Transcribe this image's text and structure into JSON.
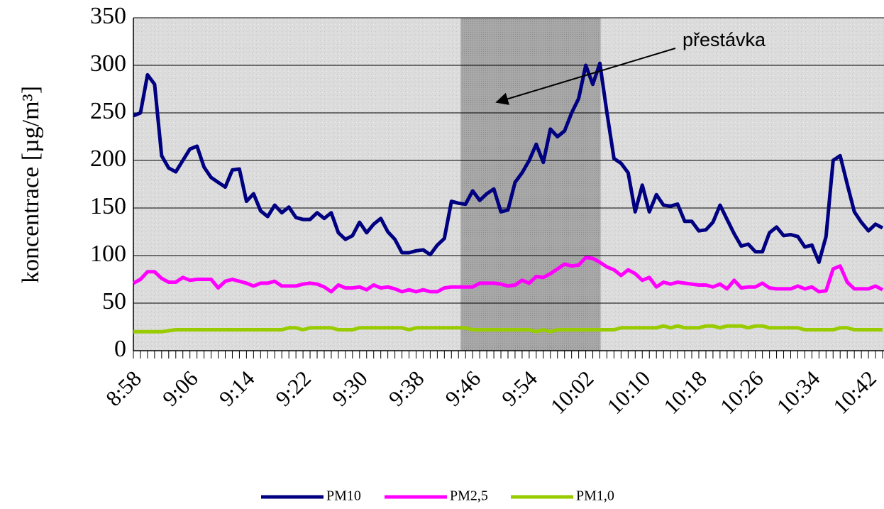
{
  "chart_data": {
    "type": "line",
    "ylabel": "koncentrace [µg/m³]",
    "annotation": "přestávka",
    "highlight": [
      46.3,
      66.1
    ],
    "categories": [
      "8:58",
      null,
      null,
      null,
      null,
      null,
      null,
      null,
      "9:06",
      null,
      null,
      null,
      null,
      null,
      null,
      null,
      "9:14",
      null,
      null,
      null,
      null,
      null,
      null,
      null,
      "9:22",
      null,
      null,
      null,
      null,
      null,
      null,
      null,
      "9:30",
      null,
      null,
      null,
      null,
      null,
      null,
      null,
      "9:38",
      null,
      null,
      null,
      null,
      null,
      null,
      null,
      "9:46",
      null,
      null,
      null,
      null,
      null,
      null,
      null,
      "9:54",
      null,
      null,
      null,
      null,
      null,
      null,
      null,
      "10:02",
      null,
      null,
      null,
      null,
      null,
      null,
      null,
      "10:10",
      null,
      null,
      null,
      null,
      null,
      null,
      null,
      "10:18",
      null,
      null,
      null,
      null,
      null,
      null,
      null,
      "10:26",
      null,
      null,
      null,
      null,
      null,
      null,
      null,
      "10:34",
      null,
      null,
      null,
      null,
      null,
      null,
      null,
      "10:42",
      null,
      null
    ],
    "series": [
      {
        "name": "PM10",
        "color": "#000080",
        "values": [
          247,
          250,
          290,
          280,
          205,
          192,
          188,
          200,
          212,
          215,
          193,
          182,
          177,
          172,
          190,
          191,
          157,
          165,
          147,
          141,
          153,
          145,
          151,
          140,
          138,
          138,
          145,
          139,
          145,
          124,
          117,
          121,
          135,
          124,
          133,
          139,
          125,
          117,
          103,
          103,
          105,
          106,
          101,
          111,
          118,
          157,
          155,
          154,
          168,
          158,
          165,
          170,
          146,
          148,
          177,
          187,
          200,
          217,
          198,
          233,
          225,
          231,
          250,
          265,
          300,
          280,
          302,
          250,
          202,
          197,
          187,
          146,
          174,
          146,
          164,
          153,
          152,
          154,
          136,
          136,
          126,
          127,
          135,
          153,
          138,
          123,
          110,
          112,
          104,
          104,
          124,
          130,
          121,
          122,
          120,
          109,
          111,
          93,
          120,
          200,
          205,
          175,
          146,
          135,
          126,
          133,
          129
        ]
      },
      {
        "name": "PM2,5",
        "color": "#ff00ff",
        "values": [
          71,
          75,
          83,
          83,
          76,
          72,
          72,
          77,
          74,
          75,
          75,
          75,
          66,
          73,
          75,
          73,
          71,
          68,
          71,
          71,
          73,
          68,
          68,
          68,
          70,
          71,
          70,
          67,
          62,
          69,
          66,
          66,
          67,
          64,
          69,
          66,
          67,
          65,
          62,
          64,
          62,
          64,
          62,
          62,
          66,
          67,
          67,
          67,
          67,
          71,
          71,
          71,
          70,
          68,
          69,
          74,
          71,
          78,
          77,
          81,
          86,
          91,
          89,
          90,
          98,
          97,
          93,
          88,
          85,
          79,
          85,
          81,
          74,
          77,
          67,
          72,
          70,
          72,
          71,
          70,
          69,
          69,
          67,
          70,
          65,
          74,
          66,
          67,
          67,
          71,
          66,
          65,
          65,
          65,
          68,
          65,
          67,
          62,
          63,
          86,
          89,
          72,
          65,
          65,
          65,
          68,
          64
        ]
      },
      {
        "name": "PM1,0",
        "color": "#99cc00",
        "values": [
          20,
          20,
          20,
          20,
          20,
          21,
          22,
          22,
          22,
          22,
          22,
          22,
          22,
          22,
          22,
          22,
          22,
          22,
          22,
          22,
          22,
          22,
          24,
          24,
          22,
          24,
          24,
          24,
          24,
          22,
          22,
          22,
          24,
          24,
          24,
          24,
          24,
          24,
          24,
          22,
          24,
          24,
          24,
          24,
          24,
          24,
          24,
          24,
          22,
          22,
          22,
          22,
          22,
          22,
          22,
          22,
          22,
          20,
          22,
          20,
          22,
          22,
          22,
          22,
          22,
          22,
          22,
          22,
          22,
          24,
          24,
          24,
          24,
          24,
          24,
          26,
          24,
          26,
          24,
          24,
          24,
          26,
          26,
          24,
          26,
          26,
          26,
          24,
          26,
          26,
          24,
          24,
          24,
          24,
          24,
          22,
          22,
          22,
          22,
          22,
          24,
          24,
          22,
          22,
          22,
          22,
          22
        ]
      }
    ],
    "ylim": [
      0,
      350
    ],
    "yticks": [
      0,
      50,
      100,
      150,
      200,
      250,
      300,
      350
    ],
    "grid": true,
    "legend": "bottom"
  }
}
